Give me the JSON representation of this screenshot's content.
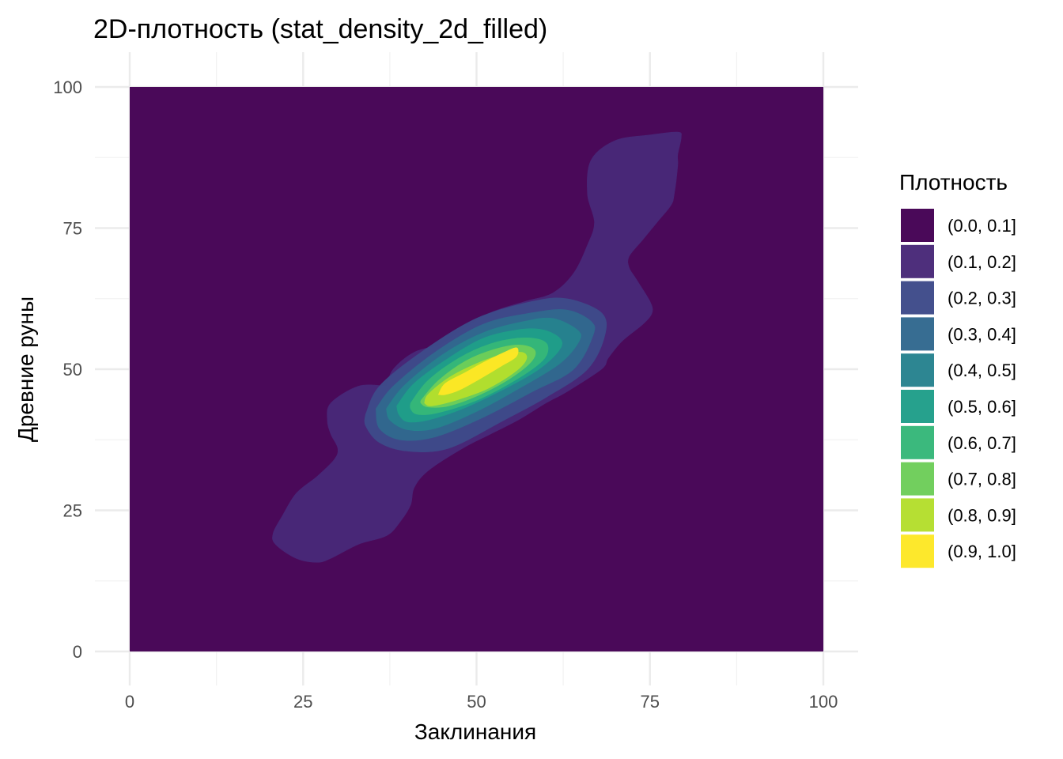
{
  "chart_data": {
    "type": "heatmap",
    "subtype": "filled-density-contour",
    "title": "2D-плотность (stat_density_2d_filled)",
    "xlabel": "Заклинания",
    "ylabel": "Древние руны",
    "xlim": [
      0,
      100
    ],
    "ylim": [
      0,
      100
    ],
    "x_ticks": [
      0,
      25,
      50,
      75,
      100
    ],
    "y_ticks": [
      0,
      25,
      50,
      75,
      100
    ],
    "x_tick_labels": [
      "0",
      "25",
      "50",
      "75",
      "100"
    ],
    "y_tick_labels": [
      "0",
      "25",
      "50",
      "75",
      "100"
    ],
    "grid": true,
    "legend": {
      "title": "Плотность",
      "placement": "right",
      "entries": [
        {
          "label": "(0.0, 0.1]",
          "color": "#440154"
        },
        {
          "label": "(0.1, 0.2]",
          "color": "#482878"
        },
        {
          "label": "(0.2, 0.3]",
          "color": "#3E4A89"
        },
        {
          "label": "(0.3, 0.4]",
          "color": "#31688E"
        },
        {
          "label": "(0.4, 0.5]",
          "color": "#26828E"
        },
        {
          "label": "(0.5, 0.6]",
          "color": "#1F9E89"
        },
        {
          "label": "(0.6, 0.7]",
          "color": "#35B779"
        },
        {
          "label": "(0.7, 0.8]",
          "color": "#6DCD59"
        },
        {
          "label": "(0.8, 0.9]",
          "color": "#B4DE2C"
        },
        {
          "label": "(0.9, 1.0]",
          "color": "#FDE725"
        }
      ]
    },
    "density_peak": {
      "x": 50,
      "y": 50
    },
    "contours": [
      {
        "level": "(0.1, 0.2]",
        "points": [
          [
            37,
            47
          ],
          [
            38,
            50
          ],
          [
            41,
            53
          ],
          [
            45,
            54.5
          ],
          [
            48,
            57
          ],
          [
            52,
            60
          ],
          [
            57,
            62
          ],
          [
            61,
            63.5
          ],
          [
            64,
            67
          ],
          [
            66,
            72
          ],
          [
            67,
            76
          ],
          [
            66,
            81
          ],
          [
            66.5,
            87
          ],
          [
            70,
            90.5
          ],
          [
            75,
            91.5
          ],
          [
            79,
            92
          ],
          [
            79.5,
            91
          ],
          [
            79,
            88
          ],
          [
            79,
            86
          ],
          [
            78.5,
            81
          ],
          [
            78,
            79
          ],
          [
            76,
            76
          ],
          [
            74,
            73
          ],
          [
            72,
            70
          ],
          [
            72,
            68
          ],
          [
            73,
            66
          ],
          [
            75,
            62
          ],
          [
            75.3,
            60
          ],
          [
            74,
            58
          ],
          [
            71,
            55
          ],
          [
            69,
            52
          ],
          [
            68,
            50
          ],
          [
            63,
            46
          ],
          [
            60,
            44
          ],
          [
            56,
            41
          ],
          [
            52,
            38.5
          ],
          [
            48,
            36
          ],
          [
            43,
            32
          ],
          [
            41,
            29
          ],
          [
            40.5,
            26
          ],
          [
            39,
            23
          ],
          [
            37,
            20.5
          ],
          [
            33,
            19
          ],
          [
            29,
            16.5
          ],
          [
            27,
            15.8
          ],
          [
            24,
            16.5
          ],
          [
            21,
            19
          ],
          [
            20.7,
            21
          ],
          [
            22,
            24
          ],
          [
            24,
            28
          ],
          [
            27,
            31
          ],
          [
            29.5,
            34
          ],
          [
            30,
            36
          ],
          [
            29,
            38.5
          ],
          [
            28.5,
            41
          ],
          [
            29,
            44
          ],
          [
            33,
            47
          ],
          [
            37,
            47
          ]
        ]
      },
      {
        "level": "(0.2, 0.3]",
        "points": [
          [
            34,
            42
          ],
          [
            36,
            47
          ],
          [
            42,
            53
          ],
          [
            50,
            59
          ],
          [
            58,
            62
          ],
          [
            63,
            62.5
          ],
          [
            68,
            60
          ],
          [
            68.5,
            56
          ],
          [
            66,
            50
          ],
          [
            60,
            45
          ],
          [
            54,
            41
          ],
          [
            46,
            36
          ],
          [
            40,
            35.5
          ],
          [
            36,
            37
          ],
          [
            34,
            40
          ],
          [
            34,
            42
          ]
        ]
      },
      {
        "level": "(0.3, 0.4]",
        "points": [
          [
            35.5,
            43
          ],
          [
            38,
            47
          ],
          [
            44,
            53
          ],
          [
            51,
            58
          ],
          [
            58,
            60
          ],
          [
            63,
            60.5
          ],
          [
            66.5,
            58.5
          ],
          [
            66.8,
            56
          ],
          [
            64,
            50
          ],
          [
            58,
            46
          ],
          [
            51,
            41.5
          ],
          [
            44,
            38
          ],
          [
            39,
            37.5
          ],
          [
            36,
            39.5
          ],
          [
            35.5,
            43
          ]
        ]
      },
      {
        "level": "(0.4, 0.5]",
        "points": [
          [
            37,
            43
          ],
          [
            39.5,
            47
          ],
          [
            45,
            52.5
          ],
          [
            51,
            56.5
          ],
          [
            57,
            58.5
          ],
          [
            61,
            59
          ],
          [
            64.5,
            57
          ],
          [
            64.8,
            55
          ],
          [
            62,
            51
          ],
          [
            56,
            46.5
          ],
          [
            50,
            42.5
          ],
          [
            44,
            39.5
          ],
          [
            40,
            39.3
          ],
          [
            37.5,
            41
          ],
          [
            37,
            43
          ]
        ]
      },
      {
        "level": "(0.5, 0.6]",
        "points": [
          [
            38.5,
            43.5
          ],
          [
            41,
            47.5
          ],
          [
            46,
            52
          ],
          [
            51,
            55.5
          ],
          [
            56,
            57
          ],
          [
            59.5,
            57
          ],
          [
            62,
            55.5
          ],
          [
            62,
            53.5
          ],
          [
            59,
            50
          ],
          [
            54,
            46.5
          ],
          [
            48,
            43
          ],
          [
            43,
            41
          ],
          [
            40,
            40.7
          ],
          [
            38.8,
            42
          ],
          [
            38.5,
            43.5
          ]
        ]
      },
      {
        "level": "(0.6, 0.7]",
        "points": [
          [
            40.5,
            44
          ],
          [
            43,
            48
          ],
          [
            47.5,
            52
          ],
          [
            52,
            54.5
          ],
          [
            56,
            55.5
          ],
          [
            59,
            55.3
          ],
          [
            60.3,
            54
          ],
          [
            59.5,
            51.5
          ],
          [
            55.5,
            48
          ],
          [
            50,
            44.5
          ],
          [
            44.5,
            42.3
          ],
          [
            41.5,
            42
          ],
          [
            40.5,
            43
          ],
          [
            40.5,
            44
          ]
        ]
      },
      {
        "level": "(0.7, 0.8]",
        "points": [
          [
            42,
            44.5
          ],
          [
            44.5,
            48
          ],
          [
            48.5,
            51.5
          ],
          [
            52.5,
            53.5
          ],
          [
            56,
            54.3
          ],
          [
            58.3,
            53.5
          ],
          [
            58,
            51.5
          ],
          [
            55,
            48.5
          ],
          [
            50.5,
            45.5
          ],
          [
            46,
            43.5
          ],
          [
            43,
            43.3
          ],
          [
            42,
            44
          ],
          [
            42,
            44.5
          ]
        ]
      },
      {
        "level": "(0.8, 0.9]",
        "points": [
          [
            42.5,
            44
          ],
          [
            43,
            45.5
          ],
          [
            46,
            48.5
          ],
          [
            50,
            51
          ],
          [
            53.5,
            52.5
          ],
          [
            56.5,
            53
          ],
          [
            57.2,
            51.8
          ],
          [
            55.5,
            49.5
          ],
          [
            51.5,
            46.5
          ],
          [
            47,
            44.5
          ],
          [
            43.5,
            43.5
          ],
          [
            42.5,
            44
          ]
        ]
      },
      {
        "level": "(0.9, 1.0]",
        "points": [
          [
            44.5,
            45.5
          ],
          [
            45.5,
            47.5
          ],
          [
            48.5,
            49.5
          ],
          [
            51,
            51.2
          ],
          [
            54,
            53
          ],
          [
            55.8,
            53.8
          ],
          [
            55.7,
            52.2
          ],
          [
            53.5,
            50.5
          ],
          [
            50.5,
            48.3
          ],
          [
            47.5,
            46.3
          ],
          [
            45.5,
            45.5
          ],
          [
            44.5,
            45.5
          ]
        ]
      }
    ]
  }
}
